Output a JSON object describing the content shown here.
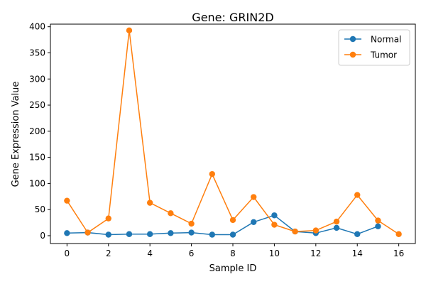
{
  "chart_data": {
    "type": "line",
    "title": "Gene: GRIN2D",
    "xlabel": "Sample ID",
    "ylabel": "Gene Expression Value",
    "xlim": [
      -0.8,
      16.8
    ],
    "ylim": [
      -15,
      405
    ],
    "xticks": [
      0,
      2,
      4,
      6,
      8,
      10,
      12,
      14,
      16
    ],
    "yticks": [
      0,
      50,
      100,
      150,
      200,
      250,
      300,
      350,
      400
    ],
    "grid": false,
    "legend_position": "top-right",
    "series": [
      {
        "name": "Normal",
        "color": "#1f77b4",
        "x": [
          0,
          1,
          2,
          3,
          4,
          5,
          6,
          7,
          8,
          9,
          10,
          11,
          12,
          13,
          14,
          15
        ],
        "y": [
          5,
          6,
          2,
          3,
          3,
          5,
          6,
          2,
          2,
          26,
          39,
          8,
          5,
          15,
          3,
          18
        ]
      },
      {
        "name": "Tumor",
        "color": "#ff7f0e",
        "x": [
          0,
          1,
          2,
          3,
          4,
          5,
          6,
          7,
          8,
          9,
          10,
          11,
          12,
          13,
          14,
          15,
          16
        ],
        "y": [
          67,
          6,
          33,
          393,
          63,
          43,
          23,
          118,
          30,
          74,
          21,
          8,
          10,
          27,
          78,
          29,
          3
        ]
      }
    ]
  }
}
